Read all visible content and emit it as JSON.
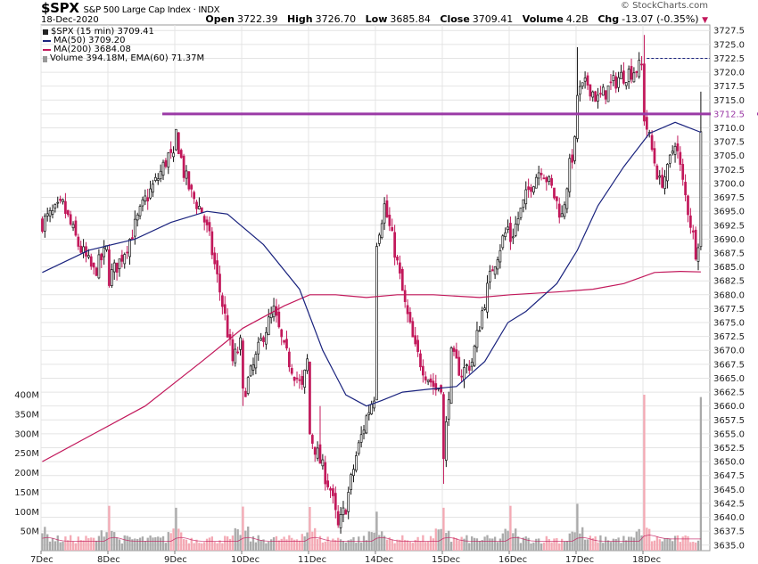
{
  "header": {
    "ticker": "$SPX",
    "name": "S&P 500 Large Cap Index",
    "exchange": "INDX",
    "date": "18-Dec-2020",
    "brand": "© StockCharts.com",
    "open_label": "Open",
    "open": "3722.39",
    "high_label": "High",
    "high": "3726.70",
    "low_label": "Low",
    "low": "3685.84",
    "close_label": "Close",
    "close": "3709.41",
    "volume_label": "Volume",
    "volume": "4.2B",
    "chg_label": "Chg",
    "chg": "-13.07 (-0.35%)"
  },
  "legend": [
    {
      "text": "$SPX (15 min) 3709.41",
      "color": "#222222"
    },
    {
      "text": "MA(50) 3709.20",
      "color": "#1a237e"
    },
    {
      "text": "MA(200) 3684.08",
      "color": "#c2185b"
    },
    {
      "text": "Volume 394.18M, EMA(60) 71.37M",
      "color": "#888888"
    }
  ],
  "colors": {
    "up": "#111111",
    "down": "#c2185b",
    "ma50": "#1a237e",
    "ma200": "#c2185b",
    "hline": "#9b3aa6",
    "vol_up": "#aaaaaa",
    "vol_down": "#f4a9b4",
    "grid": "#e4e4e4"
  },
  "chart_data": {
    "type": "candlestick",
    "x_labels": [
      "7Dec",
      "8Dec",
      "9Dec",
      "10Dec",
      "11Dec",
      "14Dec",
      "15Dec",
      "16Dec",
      "17Dec",
      "18Dec"
    ],
    "y_ticks": [
      3635.0,
      3637.5,
      3640.0,
      3642.5,
      3645.0,
      3647.5,
      3650.0,
      3652.5,
      3655.0,
      3657.5,
      3660.0,
      3662.5,
      3665.0,
      3667.5,
      3670.0,
      3672.5,
      3675.0,
      3677.5,
      3680.0,
      3682.5,
      3685.0,
      3687.5,
      3690.0,
      3692.5,
      3695.0,
      3697.5,
      3700.0,
      3702.5,
      3705.0,
      3707.5,
      3710.0,
      3712.5,
      3715.0,
      3717.5,
      3720.0,
      3722.5,
      3725.0,
      3727.5
    ],
    "ylim": [
      3634,
      3728.5
    ],
    "volume_ticks": [
      "50M",
      "100M",
      "150M",
      "200M",
      "250M",
      "300M",
      "350M",
      "400M"
    ],
    "volume_ylim": [
      0,
      400
    ],
    "horizontal_line": 3712.5,
    "prev_close_marker": 3722.5,
    "bars_per_day": 26,
    "close_path": [
      {
        "day": "7Dec",
        "bar": 0,
        "price": 3693
      },
      {
        "day": "7Dec",
        "bar": 8,
        "price": 3696
      },
      {
        "day": "7Dec",
        "bar": 14,
        "price": 3689
      },
      {
        "day": "7Dec",
        "bar": 20,
        "price": 3684
      },
      {
        "day": "7Dec",
        "bar": 25,
        "price": 3688
      },
      {
        "day": "8Dec",
        "bar": 0,
        "price": 3683
      },
      {
        "day": "8Dec",
        "bar": 4,
        "price": 3686
      },
      {
        "day": "8Dec",
        "bar": 8,
        "price": 3690
      },
      {
        "day": "8Dec",
        "bar": 14,
        "price": 3697
      },
      {
        "day": "8Dec",
        "bar": 19,
        "price": 3701
      },
      {
        "day": "8Dec",
        "bar": 23,
        "price": 3705
      },
      {
        "day": "8Dec",
        "bar": 25,
        "price": 3704
      },
      {
        "day": "9Dec",
        "bar": 0,
        "price": 3709
      },
      {
        "day": "9Dec",
        "bar": 3,
        "price": 3702
      },
      {
        "day": "9Dec",
        "bar": 6,
        "price": 3698
      },
      {
        "day": "9Dec",
        "bar": 10,
        "price": 3695
      },
      {
        "day": "9Dec",
        "bar": 13,
        "price": 3690
      },
      {
        "day": "9Dec",
        "bar": 16,
        "price": 3683
      },
      {
        "day": "9Dec",
        "bar": 19,
        "price": 3676
      },
      {
        "day": "9Dec",
        "bar": 22,
        "price": 3668
      },
      {
        "day": "9Dec",
        "bar": 25,
        "price": 3671
      },
      {
        "day": "10Dec",
        "bar": 0,
        "price": 3662
      },
      {
        "day": "10Dec",
        "bar": 4,
        "price": 3667
      },
      {
        "day": "10Dec",
        "bar": 8,
        "price": 3673
      },
      {
        "day": "10Dec",
        "bar": 12,
        "price": 3677
      },
      {
        "day": "10Dec",
        "bar": 16,
        "price": 3670
      },
      {
        "day": "10Dec",
        "bar": 20,
        "price": 3666
      },
      {
        "day": "10Dec",
        "bar": 23,
        "price": 3663
      },
      {
        "day": "10Dec",
        "bar": 25,
        "price": 3668
      },
      {
        "day": "11Dec",
        "bar": 0,
        "price": 3655
      },
      {
        "day": "11Dec",
        "bar": 4,
        "price": 3650
      },
      {
        "day": "11Dec",
        "bar": 8,
        "price": 3645
      },
      {
        "day": "11Dec",
        "bar": 11,
        "price": 3638
      },
      {
        "day": "11Dec",
        "bar": 14,
        "price": 3642
      },
      {
        "day": "11Dec",
        "bar": 18,
        "price": 3651
      },
      {
        "day": "11Dec",
        "bar": 22,
        "price": 3658
      },
      {
        "day": "11Dec",
        "bar": 25,
        "price": 3662
      },
      {
        "day": "14Dec",
        "bar": 0,
        "price": 3690
      },
      {
        "day": "14Dec",
        "bar": 3,
        "price": 3696
      },
      {
        "day": "14Dec",
        "bar": 7,
        "price": 3688
      },
      {
        "day": "14Dec",
        "bar": 11,
        "price": 3678
      },
      {
        "day": "14Dec",
        "bar": 15,
        "price": 3670
      },
      {
        "day": "14Dec",
        "bar": 19,
        "price": 3666
      },
      {
        "day": "14Dec",
        "bar": 23,
        "price": 3663
      },
      {
        "day": "14Dec",
        "bar": 25,
        "price": 3664
      },
      {
        "day": "15Dec",
        "bar": 0,
        "price": 3650
      },
      {
        "day": "15Dec",
        "bar": 3,
        "price": 3669
      },
      {
        "day": "15Dec",
        "bar": 7,
        "price": 3666
      },
      {
        "day": "15Dec",
        "bar": 11,
        "price": 3668
      },
      {
        "day": "15Dec",
        "bar": 15,
        "price": 3677
      },
      {
        "day": "15Dec",
        "bar": 19,
        "price": 3685
      },
      {
        "day": "15Dec",
        "bar": 23,
        "price": 3690
      },
      {
        "day": "15Dec",
        "bar": 25,
        "price": 3692
      },
      {
        "day": "16Dec",
        "bar": 0,
        "price": 3690
      },
      {
        "day": "16Dec",
        "bar": 4,
        "price": 3695
      },
      {
        "day": "16Dec",
        "bar": 8,
        "price": 3700
      },
      {
        "day": "16Dec",
        "bar": 12,
        "price": 3703
      },
      {
        "day": "16Dec",
        "bar": 16,
        "price": 3699
      },
      {
        "day": "16Dec",
        "bar": 20,
        "price": 3694
      },
      {
        "day": "16Dec",
        "bar": 23,
        "price": 3703
      },
      {
        "day": "16Dec",
        "bar": 25,
        "price": 3707
      },
      {
        "day": "17Dec",
        "bar": 0,
        "price": 3716
      },
      {
        "day": "17Dec",
        "bar": 4,
        "price": 3718
      },
      {
        "day": "17Dec",
        "bar": 8,
        "price": 3715
      },
      {
        "day": "17Dec",
        "bar": 12,
        "price": 3717
      },
      {
        "day": "17Dec",
        "bar": 16,
        "price": 3719
      },
      {
        "day": "17Dec",
        "bar": 20,
        "price": 3720
      },
      {
        "day": "17Dec",
        "bar": 25,
        "price": 3721
      },
      {
        "day": "18Dec",
        "bar": 0,
        "price": 3712
      },
      {
        "day": "18Dec",
        "bar": 3,
        "price": 3706
      },
      {
        "day": "18Dec",
        "bar": 6,
        "price": 3700
      },
      {
        "day": "18Dec",
        "bar": 9,
        "price": 3702
      },
      {
        "day": "18Dec",
        "bar": 12,
        "price": 3708
      },
      {
        "day": "18Dec",
        "bar": 15,
        "price": 3700
      },
      {
        "day": "18Dec",
        "bar": 18,
        "price": 3693
      },
      {
        "day": "18Dec",
        "bar": 20,
        "price": 3688
      },
      {
        "day": "18Dec",
        "bar": 21,
        "price": 3690
      },
      {
        "day": "18Dec",
        "bar": 22,
        "price": 3709
      }
    ],
    "spikes": [
      {
        "day": "10Dec",
        "bar": 0,
        "low": 3660.0
      },
      {
        "day": "11Dec",
        "bar": 4,
        "high": 3660.0
      },
      {
        "day": "14Dec",
        "bar": 0,
        "low": 3676.0
      },
      {
        "day": "15Dec",
        "bar": 0,
        "low": 3646.0
      },
      {
        "day": "17Dec",
        "bar": 0,
        "high": 3724.5
      },
      {
        "day": "18Dec",
        "bar": 0,
        "high": 3726.7
      },
      {
        "day": "18Dec",
        "bar": 22,
        "high": 3716.5
      }
    ],
    "ma50": [
      {
        "day": "7Dec",
        "bar": 0,
        "value": 3684
      },
      {
        "day": "7Dec",
        "bar": 18,
        "value": 3688
      },
      {
        "day": "8Dec",
        "bar": 10,
        "value": 3690
      },
      {
        "day": "8Dec",
        "bar": 24,
        "value": 3693
      },
      {
        "day": "9Dec",
        "bar": 12,
        "value": 3695
      },
      {
        "day": "9Dec",
        "bar": 20,
        "value": 3694.5
      },
      {
        "day": "10Dec",
        "bar": 8,
        "value": 3689
      },
      {
        "day": "10Dec",
        "bar": 22,
        "value": 3681
      },
      {
        "day": "11Dec",
        "bar": 5,
        "value": 3670
      },
      {
        "day": "11Dec",
        "bar": 14,
        "value": 3662
      },
      {
        "day": "11Dec",
        "bar": 22,
        "value": 3660
      },
      {
        "day": "14Dec",
        "bar": 2,
        "value": 3661
      },
      {
        "day": "14Dec",
        "bar": 10,
        "value": 3662.5
      },
      {
        "day": "14Dec",
        "bar": 20,
        "value": 3663
      },
      {
        "day": "15Dec",
        "bar": 5,
        "value": 3663.5
      },
      {
        "day": "15Dec",
        "bar": 16,
        "value": 3668
      },
      {
        "day": "15Dec",
        "bar": 25,
        "value": 3675
      },
      {
        "day": "16Dec",
        "bar": 6,
        "value": 3677
      },
      {
        "day": "16Dec",
        "bar": 18,
        "value": 3682
      },
      {
        "day": "17Dec",
        "bar": 0,
        "value": 3688
      },
      {
        "day": "17Dec",
        "bar": 8,
        "value": 3696
      },
      {
        "day": "17Dec",
        "bar": 18,
        "value": 3703
      },
      {
        "day": "18Dec",
        "bar": 2,
        "value": 3709
      },
      {
        "day": "18Dec",
        "bar": 12,
        "value": 3711
      },
      {
        "day": "18Dec",
        "bar": 22,
        "value": 3709.2
      }
    ],
    "ma200": [
      {
        "day": "7Dec",
        "bar": 0,
        "value": 3650
      },
      {
        "day": "7Dec",
        "bar": 20,
        "value": 3655
      },
      {
        "day": "8Dec",
        "bar": 14,
        "value": 3660
      },
      {
        "day": "9Dec",
        "bar": 10,
        "value": 3668
      },
      {
        "day": "10Dec",
        "bar": 0,
        "value": 3674
      },
      {
        "day": "10Dec",
        "bar": 16,
        "value": 3678
      },
      {
        "day": "11Dec",
        "bar": 0,
        "value": 3680
      },
      {
        "day": "11Dec",
        "bar": 10,
        "value": 3680
      },
      {
        "day": "11Dec",
        "bar": 22,
        "value": 3679.5
      },
      {
        "day": "14Dec",
        "bar": 8,
        "value": 3680
      },
      {
        "day": "14Dec",
        "bar": 22,
        "value": 3680
      },
      {
        "day": "15Dec",
        "bar": 14,
        "value": 3679.5
      },
      {
        "day": "16Dec",
        "bar": 0,
        "value": 3680
      },
      {
        "day": "16Dec",
        "bar": 18,
        "value": 3680.5
      },
      {
        "day": "17Dec",
        "bar": 6,
        "value": 3681
      },
      {
        "day": "17Dec",
        "bar": 18,
        "value": 3682
      },
      {
        "day": "18Dec",
        "bar": 4,
        "value": 3684
      },
      {
        "day": "18Dec",
        "bar": 14,
        "value": 3684.2
      },
      {
        "day": "18Dec",
        "bar": 22,
        "value": 3684.1
      }
    ],
    "volume_spikes_millions": [
      {
        "day": "8Dec",
        "bar": 0,
        "value": 115
      },
      {
        "day": "9Dec",
        "bar": 0,
        "value": 110
      },
      {
        "day": "10Dec",
        "bar": 0,
        "value": 113
      },
      {
        "day": "11Dec",
        "bar": 0,
        "value": 112
      },
      {
        "day": "14Dec",
        "bar": 0,
        "value": 100
      },
      {
        "day": "15Dec",
        "bar": 0,
        "value": 110
      },
      {
        "day": "16Dec",
        "bar": 0,
        "value": 115
      },
      {
        "day": "17Dec",
        "bar": 0,
        "value": 120
      },
      {
        "day": "18Dec",
        "bar": 0,
        "value": 400
      },
      {
        "day": "18Dec",
        "bar": 22,
        "value": 394
      }
    ]
  }
}
